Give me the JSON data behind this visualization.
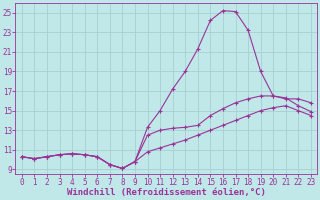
{
  "xlabel": "Windchill (Refroidissement éolien,°C)",
  "background_color": "#c0e8e8",
  "grid_color": "#a8d0d0",
  "line_color": "#993399",
  "xlim": [
    -0.5,
    23.5
  ],
  "ylim": [
    8.5,
    26.0
  ],
  "xticks": [
    0,
    1,
    2,
    3,
    4,
    5,
    6,
    7,
    8,
    9,
    10,
    11,
    12,
    13,
    14,
    15,
    16,
    17,
    18,
    19,
    20,
    21,
    22,
    23
  ],
  "yticks": [
    9,
    11,
    13,
    15,
    17,
    19,
    21,
    23,
    25
  ],
  "series": [
    [
      10.3,
      10.1,
      10.3,
      10.5,
      10.6,
      10.5,
      10.3,
      9.5,
      9.1,
      9.8,
      13.3,
      15.0,
      17.2,
      19.0,
      21.3,
      24.2,
      25.2,
      25.1,
      23.2,
      19.0,
      16.5,
      16.2,
      16.2,
      15.8
    ],
    [
      10.3,
      10.1,
      10.3,
      10.5,
      10.6,
      10.5,
      10.3,
      9.5,
      9.1,
      9.8,
      12.5,
      13.0,
      13.2,
      13.3,
      13.5,
      14.5,
      15.2,
      15.8,
      16.2,
      16.5,
      16.5,
      16.3,
      15.5,
      14.9
    ],
    [
      10.3,
      10.1,
      10.3,
      10.5,
      10.6,
      10.5,
      10.3,
      9.5,
      9.1,
      9.8,
      10.8,
      11.2,
      11.6,
      12.0,
      12.5,
      13.0,
      13.5,
      14.0,
      14.5,
      15.0,
      15.3,
      15.5,
      15.0,
      14.5
    ]
  ],
  "font_color": "#993399",
  "tick_fontsize": 5.5,
  "xlabel_fontsize": 6.5
}
